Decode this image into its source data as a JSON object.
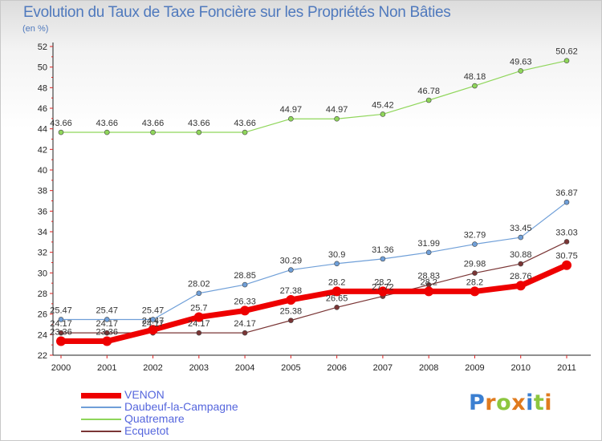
{
  "header": {
    "title": "Evolution du Taux de Taxe Foncière sur les Propriétés Non Bâties",
    "unit": "(en %)"
  },
  "chart_data": {
    "type": "line",
    "title": "Evolution du Taux de Taxe Foncière sur les Propriétés Non Bâties",
    "ylabel": "(en %)",
    "xlabel": "",
    "x": [
      "2000",
      "2001",
      "2002",
      "2003",
      "2004",
      "2005",
      "2006",
      "2007",
      "2008",
      "2009",
      "2010",
      "2011"
    ],
    "ylim": [
      22,
      52
    ],
    "yticks": [
      22,
      24,
      26,
      28,
      30,
      32,
      34,
      36,
      38,
      40,
      42,
      44,
      46,
      48,
      50,
      52
    ],
    "grid": false,
    "legend_position": "bottom-left",
    "series": [
      {
        "name": "VENON",
        "color": "#ee0000",
        "values": [
          23.36,
          23.36,
          24.47,
          25.7,
          26.33,
          27.38,
          28.2,
          28.2,
          28.2,
          28.2,
          28.76,
          30.75
        ],
        "labels": [
          "23.36",
          "23.36",
          "24.47",
          "25.7",
          "26.33",
          "27.38",
          "28.2",
          "28.2",
          "28.2",
          "28.2",
          "28.76",
          "30.75"
        ]
      },
      {
        "name": "Daubeuf-la-Campagne",
        "color": "#6f9fd8",
        "values": [
          25.47,
          25.47,
          25.47,
          28.02,
          28.85,
          30.29,
          30.9,
          31.36,
          31.99,
          32.79,
          33.45,
          36.87
        ],
        "labels": [
          "25.47",
          "25.47",
          "25.47",
          "28.02",
          "28.85",
          "30.29",
          "30.9",
          "31.36",
          "31.99",
          "32.79",
          "33.45",
          "36.87"
        ]
      },
      {
        "name": "Quatremare",
        "color": "#8fd65a",
        "values": [
          43.66,
          43.66,
          43.66,
          43.66,
          43.66,
          44.97,
          44.97,
          45.42,
          46.78,
          48.18,
          49.63,
          50.62
        ],
        "labels": [
          "43.66",
          "43.66",
          "43.66",
          "43.66",
          "43.66",
          "44.97",
          "44.97",
          "45.42",
          "46.78",
          "48.18",
          "49.63",
          "50.62"
        ]
      },
      {
        "name": "Ecquetot",
        "color": "#7a3535",
        "values": [
          24.17,
          24.17,
          24.17,
          24.17,
          24.17,
          25.38,
          26.65,
          27.72,
          28.83,
          29.98,
          30.88,
          33.03
        ],
        "labels": [
          "24.17",
          "24.17",
          "24.17",
          "24.17",
          "24.17",
          "25.38",
          "26.65",
          "27.72",
          "28.83",
          "29.98",
          "30.88",
          "33.03"
        ]
      }
    ]
  },
  "logo": {
    "letters": [
      "P",
      "r",
      "o",
      "x",
      "i",
      "t",
      "i"
    ],
    "colors": [
      "#3b7fd1",
      "#e07b1e",
      "#8cc63f",
      "#e07b1e",
      "#3b7fd1",
      "#8cc63f",
      "#e07b1e"
    ]
  }
}
